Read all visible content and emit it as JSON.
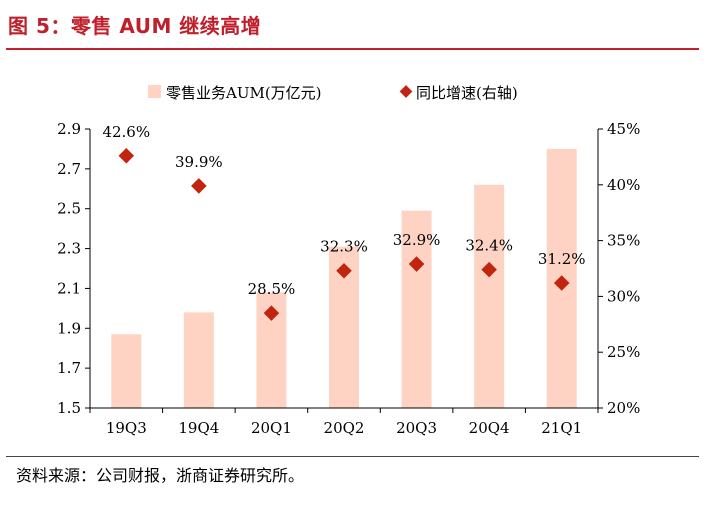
{
  "figure": {
    "title": "图 5：零售 AUM 继续高增",
    "source": "资料来源：公司财报，浙商证券研究所。"
  },
  "colors": {
    "accent": "#c0202c",
    "bar": "#ffd3c4",
    "marker": "#c1250f"
  },
  "chart_data": {
    "type": "bar",
    "categories": [
      "19Q3",
      "19Q4",
      "20Q1",
      "20Q2",
      "20Q3",
      "20Q4",
      "21Q1"
    ],
    "series": [
      {
        "name": "零售业务AUM(万亿元)",
        "kind": "bar",
        "axis": "left",
        "values": [
          1.87,
          1.98,
          2.08,
          2.31,
          2.49,
          2.62,
          2.8
        ]
      },
      {
        "name": "同比增速(右轴)",
        "kind": "scatter",
        "axis": "right",
        "values": [
          42.6,
          39.9,
          28.5,
          32.3,
          32.9,
          32.4,
          31.2
        ],
        "labels": [
          "42.6%",
          "39.9%",
          "28.5%",
          "32.3%",
          "32.9%",
          "32.4%",
          "31.2%"
        ]
      }
    ],
    "y_left": {
      "min": 1.5,
      "max": 2.9,
      "ticks": [
        "1.5",
        "1.7",
        "1.9",
        "2.1",
        "2.3",
        "2.5",
        "2.7",
        "2.9"
      ]
    },
    "y_right": {
      "min": 20,
      "max": 45,
      "ticks": [
        "20%",
        "25%",
        "30%",
        "35%",
        "40%",
        "45%"
      ]
    },
    "legend_position": "top-center"
  }
}
